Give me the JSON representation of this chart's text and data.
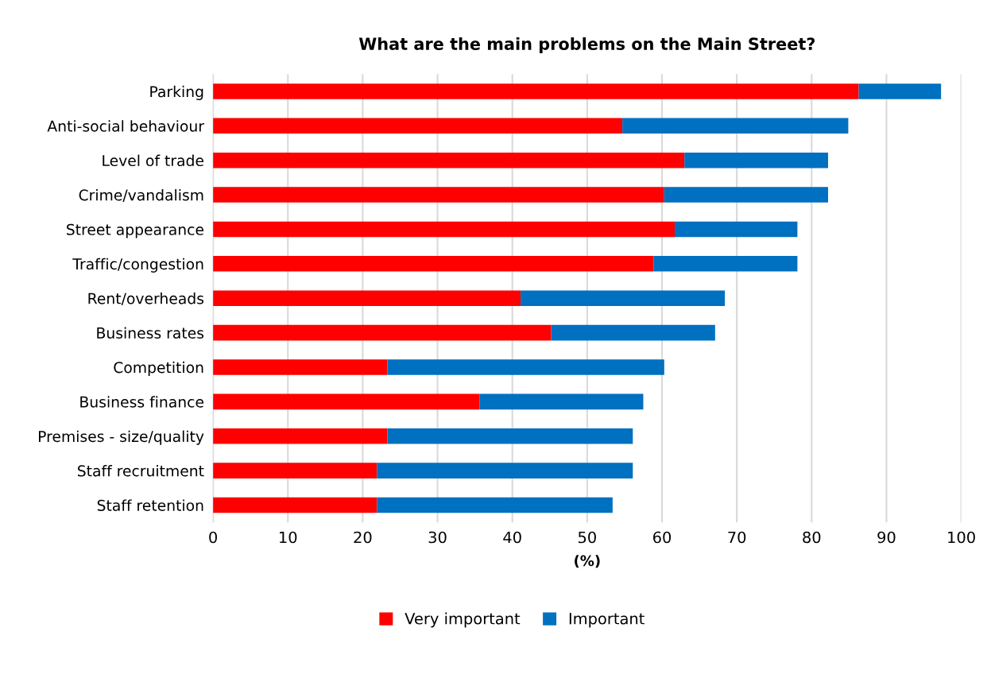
{
  "chart_data": {
    "type": "bar",
    "orientation": "horizontal",
    "stacked": true,
    "title": "What are the main problems on the Main Street?",
    "xlabel": "(%)",
    "categories": [
      "Parking",
      "Anti-social behaviour",
      "Level of trade",
      "Crime/vandalism",
      "Street appearance",
      "Traffic/congestion",
      "Rent/overheads",
      "Business rates",
      "Competition",
      "Business finance",
      "Premises - size/quality",
      "Staff recruitment",
      "Staff retention"
    ],
    "series": [
      {
        "name": "Very important",
        "color": "#ff0000",
        "values": [
          86.3,
          54.7,
          63.0,
          60.3,
          61.7,
          58.9,
          41.1,
          45.2,
          23.3,
          35.6,
          23.3,
          21.9,
          21.9
        ]
      },
      {
        "name": "Important",
        "color": "#0070c0",
        "values": [
          11.0,
          30.2,
          19.2,
          21.9,
          16.4,
          19.2,
          27.3,
          21.9,
          37.0,
          21.9,
          32.8,
          34.2,
          31.5
        ]
      }
    ],
    "xlim": [
      0,
      100
    ],
    "xticks": [
      0,
      10,
      20,
      30,
      40,
      50,
      60,
      70,
      80,
      90,
      100
    ],
    "grid": "x",
    "legend": "bottom"
  }
}
